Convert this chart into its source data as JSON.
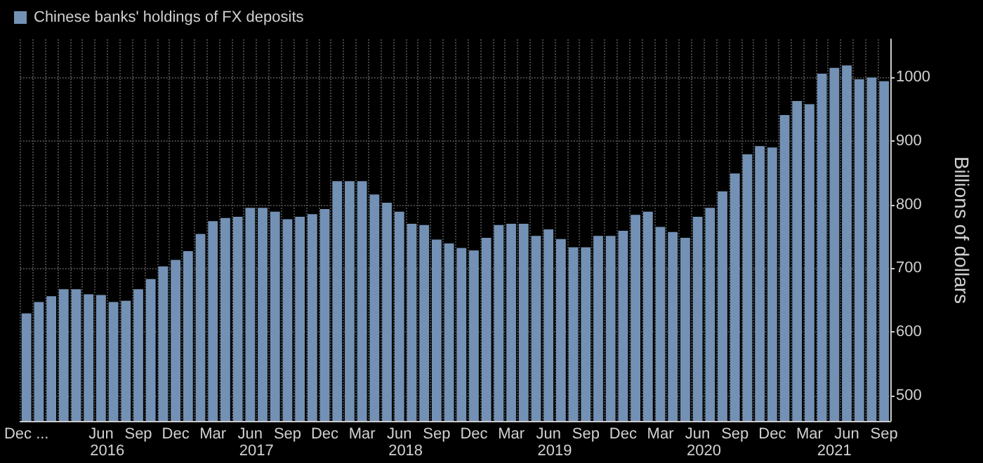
{
  "chart_data": {
    "type": "bar",
    "ylabel": "Billions of dollars",
    "categories": [
      "Dec ...",
      null,
      null,
      null,
      null,
      null,
      "Jun",
      null,
      null,
      "Sep",
      null,
      null,
      "Dec",
      null,
      null,
      "Mar",
      null,
      null,
      "Jun",
      null,
      null,
      "Sep",
      null,
      null,
      "Dec",
      null,
      null,
      "Mar",
      null,
      null,
      "Jun",
      null,
      null,
      "Sep",
      null,
      null,
      "Dec",
      null,
      null,
      "Mar",
      null,
      null,
      "Jun",
      null,
      null,
      "Sep",
      null,
      null,
      "Dec",
      null,
      null,
      "Mar",
      null,
      null,
      "Jun",
      null,
      null,
      "Sep",
      null,
      null,
      "Dec",
      null,
      null,
      "Mar",
      null,
      null,
      "Jun",
      null,
      null,
      "Sep"
    ],
    "series": [
      {
        "name": "Chinese banks' holdings of FX deposits",
        "color": "#7391b5",
        "values": [
          629,
          647,
          656,
          667,
          667,
          659,
          658,
          647,
          649,
          667,
          683,
          703,
          713,
          727,
          754,
          774,
          779,
          781,
          795,
          795,
          789,
          777,
          781,
          785,
          793,
          837,
          837,
          837,
          816,
          803,
          789,
          770,
          768,
          745,
          739,
          732,
          728,
          748,
          768,
          770,
          770,
          751,
          761,
          746,
          733,
          733,
          751,
          751,
          759,
          784,
          789,
          765,
          757,
          748,
          781,
          795,
          821,
          849,
          879,
          892,
          890,
          941,
          963,
          958,
          1006,
          1015,
          1019,
          997,
          1000,
          994
        ]
      }
    ],
    "ylim": [
      460,
      1060
    ],
    "yticks": [
      500,
      600,
      700,
      800,
      900,
      1000
    ],
    "grid": true,
    "legend": "top left",
    "annotations": [
      "2016",
      "2017",
      "2018",
      "2019",
      "2020",
      "2021"
    ]
  }
}
